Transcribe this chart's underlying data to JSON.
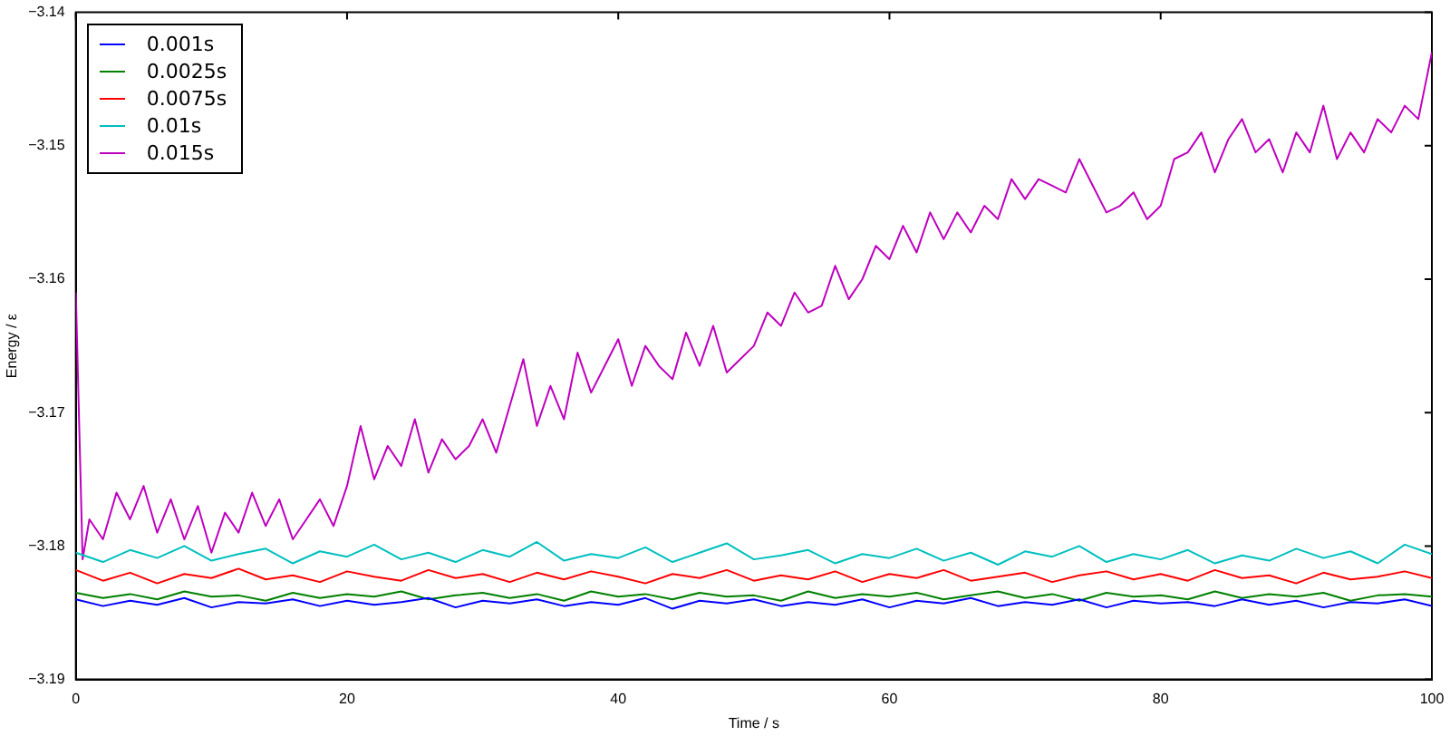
{
  "chart_data": {
    "type": "line",
    "xlabel": "Time / s",
    "ylabel": "Energy / ε",
    "xlim": [
      0,
      100
    ],
    "xticks": [
      0,
      20,
      40,
      60,
      80,
      100
    ],
    "ylim": [
      -3.19,
      -3.14
    ],
    "yticks": [
      {
        "value": -3.19,
        "label": "−3.19"
      },
      {
        "value": -3.18,
        "label": "−3.18"
      },
      {
        "value": -3.17,
        "label": "−3.17"
      },
      {
        "value": -3.16,
        "label": "−3.16"
      },
      {
        "value": -3.15,
        "label": "−3.15"
      },
      {
        "value": -3.14,
        "label": "−3.14"
      }
    ],
    "grid": false,
    "legend": "top left",
    "marker": "none",
    "line_style": "solid",
    "x": [
      0,
      2,
      4,
      6,
      8,
      10,
      12,
      14,
      16,
      18,
      20,
      22,
      24,
      26,
      28,
      30,
      32,
      34,
      36,
      38,
      40,
      42,
      44,
      46,
      48,
      50,
      52,
      54,
      56,
      58,
      60,
      62,
      64,
      66,
      68,
      70,
      72,
      74,
      76,
      78,
      80,
      82,
      84,
      86,
      88,
      90,
      92,
      94,
      96,
      98,
      100
    ],
    "series": [
      {
        "name": "0.001s",
        "color": "#0000ff",
        "values": [
          -3.184,
          -3.1845,
          -3.1841,
          -3.1844,
          -3.1839,
          -3.1846,
          -3.1842,
          -3.1843,
          -3.184,
          -3.1845,
          -3.1841,
          -3.1844,
          -3.1842,
          -3.1839,
          -3.1846,
          -3.1841,
          -3.1843,
          -3.184,
          -3.1845,
          -3.1842,
          -3.1844,
          -3.1839,
          -3.1847,
          -3.1841,
          -3.1843,
          -3.184,
          -3.1845,
          -3.1842,
          -3.1844,
          -3.184,
          -3.1846,
          -3.1841,
          -3.1843,
          -3.1839,
          -3.1845,
          -3.1842,
          -3.1844,
          -3.184,
          -3.1846,
          -3.1841,
          -3.1843,
          -3.1842,
          -3.1845,
          -3.184,
          -3.1844,
          -3.1841,
          -3.1846,
          -3.1842,
          -3.1843,
          -3.184,
          -3.1845
        ]
      },
      {
        "name": "0.0025s",
        "color": "#008000",
        "values": [
          -3.1835,
          -3.1839,
          -3.1836,
          -3.184,
          -3.1834,
          -3.1838,
          -3.1837,
          -3.1841,
          -3.1835,
          -3.1839,
          -3.1836,
          -3.1838,
          -3.1834,
          -3.184,
          -3.1837,
          -3.1835,
          -3.1839,
          -3.1836,
          -3.1841,
          -3.1834,
          -3.1838,
          -3.1836,
          -3.184,
          -3.1835,
          -3.1838,
          -3.1837,
          -3.1841,
          -3.1834,
          -3.1839,
          -3.1836,
          -3.1838,
          -3.1835,
          -3.184,
          -3.1837,
          -3.1834,
          -3.1839,
          -3.1836,
          -3.1841,
          -3.1835,
          -3.1838,
          -3.1837,
          -3.184,
          -3.1834,
          -3.1839,
          -3.1836,
          -3.1838,
          -3.1835,
          -3.1841,
          -3.1837,
          -3.1836,
          -3.1838
        ]
      },
      {
        "name": "0.0075s",
        "color": "#ff0000",
        "values": [
          -3.1818,
          -3.1826,
          -3.182,
          -3.1828,
          -3.1821,
          -3.1824,
          -3.1817,
          -3.1825,
          -3.1822,
          -3.1827,
          -3.1819,
          -3.1823,
          -3.1826,
          -3.1818,
          -3.1824,
          -3.1821,
          -3.1827,
          -3.182,
          -3.1825,
          -3.1819,
          -3.1823,
          -3.1828,
          -3.1821,
          -3.1824,
          -3.1818,
          -3.1826,
          -3.1822,
          -3.1825,
          -3.1819,
          -3.1827,
          -3.1821,
          -3.1824,
          -3.1818,
          -3.1826,
          -3.1823,
          -3.182,
          -3.1827,
          -3.1822,
          -3.1819,
          -3.1825,
          -3.1821,
          -3.1826,
          -3.1818,
          -3.1824,
          -3.1822,
          -3.1828,
          -3.182,
          -3.1825,
          -3.1823,
          -3.1819,
          -3.1824
        ]
      },
      {
        "name": "0.01s",
        "color": "#00bfbf",
        "values": [
          -3.1805,
          -3.1812,
          -3.1803,
          -3.1809,
          -3.18,
          -3.1811,
          -3.1806,
          -3.1802,
          -3.1813,
          -3.1804,
          -3.1808,
          -3.1799,
          -3.181,
          -3.1805,
          -3.1812,
          -3.1803,
          -3.1808,
          -3.1797,
          -3.1811,
          -3.1806,
          -3.1809,
          -3.1801,
          -3.1812,
          -3.1805,
          -3.1798,
          -3.181,
          -3.1807,
          -3.1803,
          -3.1813,
          -3.1806,
          -3.1809,
          -3.1802,
          -3.1811,
          -3.1805,
          -3.1814,
          -3.1804,
          -3.1808,
          -3.18,
          -3.1812,
          -3.1806,
          -3.181,
          -3.1803,
          -3.1813,
          -3.1807,
          -3.1811,
          -3.1802,
          -3.1809,
          -3.1804,
          -3.1813,
          -3.1799,
          -3.1806
        ]
      },
      {
        "name": "0.015s",
        "color": "#bf00bf",
        "x": [
          0,
          0.5,
          1,
          2,
          3,
          4,
          5,
          6,
          7,
          8,
          9,
          10,
          11,
          12,
          13,
          14,
          15,
          16,
          17,
          18,
          19,
          20,
          21,
          22,
          23,
          24,
          25,
          26,
          27,
          28,
          29,
          30,
          31,
          32,
          33,
          34,
          35,
          36,
          37,
          38,
          39,
          40,
          41,
          42,
          43,
          44,
          45,
          46,
          47,
          48,
          49,
          50,
          51,
          52,
          53,
          54,
          55,
          56,
          57,
          58,
          59,
          60,
          61,
          62,
          63,
          64,
          65,
          66,
          67,
          68,
          69,
          70,
          71,
          72,
          73,
          74,
          75,
          76,
          77,
          78,
          79,
          80,
          81,
          82,
          83,
          84,
          85,
          86,
          87,
          88,
          89,
          90,
          91,
          92,
          93,
          94,
          95,
          96,
          97,
          98,
          99,
          99.7,
          100
        ],
        "values": [
          -3.161,
          -3.181,
          -3.178,
          -3.1795,
          -3.176,
          -3.178,
          -3.1755,
          -3.179,
          -3.1765,
          -3.1795,
          -3.177,
          -3.1805,
          -3.1775,
          -3.179,
          -3.176,
          -3.1785,
          -3.1765,
          -3.1795,
          -3.178,
          -3.1765,
          -3.1785,
          -3.1755,
          -3.171,
          -3.175,
          -3.1725,
          -3.174,
          -3.1705,
          -3.1745,
          -3.172,
          -3.1735,
          -3.1725,
          -3.1705,
          -3.173,
          -3.1695,
          -3.166,
          -3.171,
          -3.168,
          -3.1705,
          -3.1655,
          -3.1685,
          -3.1665,
          -3.1645,
          -3.168,
          -3.165,
          -3.1665,
          -3.1675,
          -3.164,
          -3.1665,
          -3.1635,
          -3.167,
          -3.166,
          -3.165,
          -3.1625,
          -3.1635,
          -3.161,
          -3.1625,
          -3.162,
          -3.159,
          -3.1615,
          -3.16,
          -3.1575,
          -3.1585,
          -3.156,
          -3.158,
          -3.155,
          -3.157,
          -3.155,
          -3.1565,
          -3.1545,
          -3.1555,
          -3.1525,
          -3.154,
          -3.1525,
          -3.153,
          -3.1535,
          -3.151,
          -3.153,
          -3.155,
          -3.1545,
          -3.1535,
          -3.1555,
          -3.1545,
          -3.151,
          -3.1505,
          -3.149,
          -3.152,
          -3.1495,
          -3.148,
          -3.1505,
          -3.1495,
          -3.152,
          -3.149,
          -3.1505,
          -3.147,
          -3.151,
          -3.149,
          -3.1505,
          -3.148,
          -3.149,
          -3.147,
          -3.148,
          -3.1445,
          -3.143
        ]
      }
    ]
  }
}
